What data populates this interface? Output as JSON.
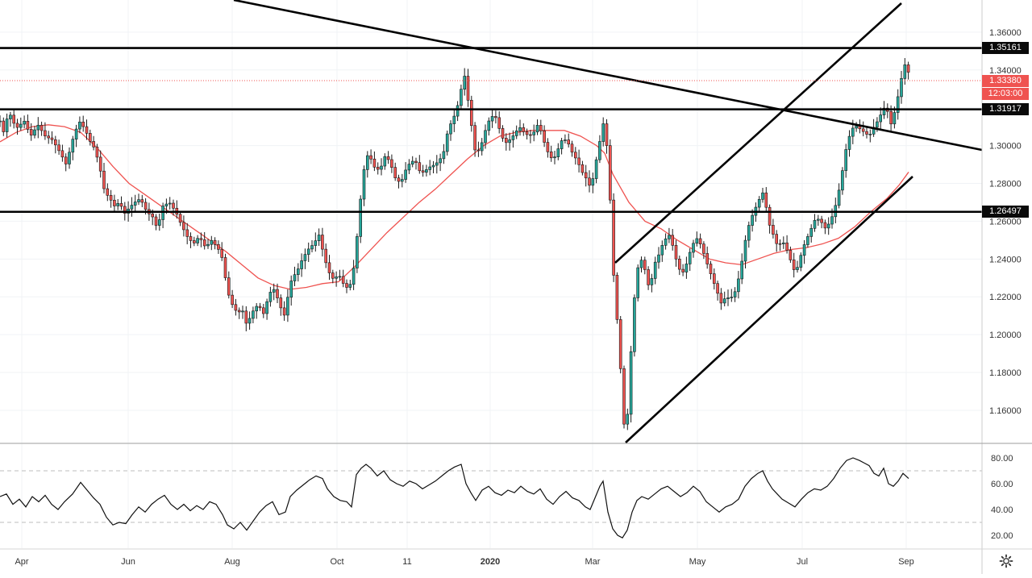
{
  "chart_data": {
    "type": "candlestick",
    "price_axis": {
      "ticks": [
        "1.36000",
        "1.34000",
        "1.32000",
        "1.30000",
        "1.28000",
        "1.26000",
        "1.24000",
        "1.22000",
        "1.20000",
        "1.18000",
        "1.16000"
      ],
      "range": [
        1.1425,
        1.377
      ]
    },
    "rsi_axis": {
      "ticks": [
        "80.00",
        "60.00",
        "40.00",
        "20.00"
      ],
      "range": [
        10,
        90
      ],
      "bands": [
        70,
        30
      ]
    },
    "time_axis": {
      "ticks": [
        "Apr",
        "Jun",
        "Aug",
        "Oct",
        "11",
        "2020",
        "Mar",
        "May",
        "Jul",
        "Sep"
      ]
    },
    "horizontal_levels": [
      "1.35161",
      "1.31917",
      "1.26497"
    ],
    "current_price": "1.33380",
    "countdown": "12:03:00",
    "moving_average_color": "#ef5350",
    "up_color": "#26a69a",
    "down_color": "#ef5350",
    "price_points": [
      [
        0,
        1.313
      ],
      [
        6,
        1.305
      ],
      [
        10,
        1.319
      ],
      [
        20,
        1.309
      ],
      [
        30,
        1.313
      ],
      [
        38,
        1.305
      ],
      [
        47,
        1.311
      ],
      [
        56,
        1.305
      ],
      [
        65,
        1.303
      ],
      [
        75,
        1.296
      ],
      [
        82,
        1.29
      ],
      [
        90,
        1.303
      ],
      [
        98,
        1.313
      ],
      [
        105,
        1.309
      ],
      [
        112,
        1.302
      ],
      [
        118,
        1.298
      ],
      [
        125,
        1.286
      ],
      [
        130,
        1.275
      ],
      [
        135,
        1.273
      ],
      [
        142,
        1.268
      ],
      [
        148,
        1.27
      ],
      [
        155,
        1.264
      ],
      [
        160,
        1.267
      ],
      [
        167,
        1.27
      ],
      [
        174,
        1.272
      ],
      [
        182,
        1.265
      ],
      [
        190,
        1.262
      ],
      [
        195,
        1.256
      ],
      [
        202,
        1.268
      ],
      [
        210,
        1.27
      ],
      [
        218,
        1.265
      ],
      [
        225,
        1.258
      ],
      [
        232,
        1.252
      ],
      [
        240,
        1.248
      ],
      [
        247,
        1.252
      ],
      [
        255,
        1.246
      ],
      [
        262,
        1.25
      ],
      [
        270,
        1.246
      ],
      [
        276,
        1.24
      ],
      [
        282,
        1.223
      ],
      [
        288,
        1.216
      ],
      [
        295,
        1.211
      ],
      [
        300,
        1.214
      ],
      [
        306,
        1.205
      ],
      [
        313,
        1.212
      ],
      [
        320,
        1.216
      ],
      [
        327,
        1.211
      ],
      [
        334,
        1.222
      ],
      [
        340,
        1.224
      ],
      [
        347,
        1.216
      ],
      [
        352,
        1.209
      ],
      [
        357,
        1.22
      ],
      [
        362,
        1.23
      ],
      [
        368,
        1.233
      ],
      [
        375,
        1.24
      ],
      [
        382,
        1.245
      ],
      [
        389,
        1.248
      ],
      [
        396,
        1.253
      ],
      [
        402,
        1.241
      ],
      [
        408,
        1.233
      ],
      [
        414,
        1.229
      ],
      [
        420,
        1.232
      ],
      [
        427,
        1.226
      ],
      [
        433,
        1.224
      ],
      [
        440,
        1.238
      ],
      [
        445,
        1.262
      ],
      [
        450,
        1.284
      ],
      [
        455,
        1.295
      ],
      [
        460,
        1.293
      ],
      [
        466,
        1.287
      ],
      [
        472,
        1.288
      ],
      [
        478,
        1.295
      ],
      [
        484,
        1.291
      ],
      [
        490,
        1.283
      ],
      [
        497,
        1.28
      ],
      [
        503,
        1.287
      ],
      [
        510,
        1.292
      ],
      [
        516,
        1.291
      ],
      [
        522,
        1.285
      ],
      [
        528,
        1.287
      ],
      [
        534,
        1.289
      ],
      [
        540,
        1.29
      ],
      [
        546,
        1.293
      ],
      [
        550,
        1.296
      ],
      [
        556,
        1.309
      ],
      [
        562,
        1.314
      ],
      [
        567,
        1.32
      ],
      [
        572,
        1.33
      ],
      [
        577,
        1.338
      ],
      [
        581,
        1.322
      ],
      [
        586,
        1.307
      ],
      [
        590,
        1.295
      ],
      [
        596,
        1.299
      ],
      [
        602,
        1.308
      ],
      [
        608,
        1.315
      ],
      [
        614,
        1.316
      ],
      [
        620,
        1.308
      ],
      [
        626,
        1.301
      ],
      [
        632,
        1.303
      ],
      [
        638,
        1.306
      ],
      [
        644,
        1.31
      ],
      [
        650,
        1.307
      ],
      [
        656,
        1.305
      ],
      [
        662,
        1.307
      ],
      [
        668,
        1.312
      ],
      [
        674,
        1.303
      ],
      [
        680,
        1.296
      ],
      [
        686,
        1.292
      ],
      [
        692,
        1.298
      ],
      [
        698,
        1.304
      ],
      [
        704,
        1.302
      ],
      [
        710,
        1.296
      ],
      [
        716,
        1.292
      ],
      [
        722,
        1.286
      ],
      [
        728,
        1.282
      ],
      [
        733,
        1.277
      ],
      [
        738,
        1.289
      ],
      [
        743,
        1.3
      ],
      [
        748,
        1.312
      ],
      [
        752,
        1.303
      ],
      [
        755,
        1.285
      ],
      [
        758,
        1.262
      ],
      [
        761,
        1.232
      ],
      [
        764,
        1.215
      ],
      [
        767,
        1.2
      ],
      [
        770,
        1.18
      ],
      [
        772,
        1.158
      ],
      [
        775,
        1.15
      ],
      [
        778,
        1.156
      ],
      [
        781,
        1.175
      ],
      [
        784,
        1.205
      ],
      [
        788,
        1.225
      ],
      [
        792,
        1.238
      ],
      [
        797,
        1.24
      ],
      [
        802,
        1.23
      ],
      [
        806,
        1.223
      ],
      [
        811,
        1.237
      ],
      [
        816,
        1.241
      ],
      [
        821,
        1.247
      ],
      [
        826,
        1.251
      ],
      [
        831,
        1.253
      ],
      [
        836,
        1.244
      ],
      [
        841,
        1.236
      ],
      [
        846,
        1.232
      ],
      [
        852,
        1.238
      ],
      [
        858,
        1.247
      ],
      [
        864,
        1.251
      ],
      [
        870,
        1.247
      ],
      [
        875,
        1.24
      ],
      [
        880,
        1.234
      ],
      [
        885,
        1.228
      ],
      [
        890,
        1.222
      ],
      [
        895,
        1.216
      ],
      [
        900,
        1.22
      ],
      [
        906,
        1.219
      ],
      [
        912,
        1.223
      ],
      [
        918,
        1.233
      ],
      [
        924,
        1.249
      ],
      [
        930,
        1.26
      ],
      [
        936,
        1.266
      ],
      [
        941,
        1.271
      ],
      [
        946,
        1.275
      ],
      [
        950,
        1.268
      ],
      [
        955,
        1.257
      ],
      [
        960,
        1.252
      ],
      [
        965,
        1.246
      ],
      [
        970,
        1.25
      ],
      [
        975,
        1.246
      ],
      [
        980,
        1.24
      ],
      [
        985,
        1.234
      ],
      [
        990,
        1.236
      ],
      [
        995,
        1.245
      ],
      [
        1000,
        1.25
      ],
      [
        1006,
        1.256
      ],
      [
        1012,
        1.262
      ],
      [
        1018,
        1.26
      ],
      [
        1024,
        1.256
      ],
      [
        1030,
        1.26
      ],
      [
        1035,
        1.266
      ],
      [
        1040,
        1.275
      ],
      [
        1045,
        1.287
      ],
      [
        1050,
        1.3
      ],
      [
        1055,
        1.307
      ],
      [
        1060,
        1.311
      ],
      [
        1066,
        1.309
      ],
      [
        1072,
        1.307
      ],
      [
        1078,
        1.305
      ],
      [
        1084,
        1.31
      ],
      [
        1090,
        1.314
      ],
      [
        1096,
        1.32
      ],
      [
        1101,
        1.318
      ],
      [
        1106,
        1.31
      ],
      [
        1111,
        1.321
      ],
      [
        1116,
        1.33
      ],
      [
        1120,
        1.341
      ],
      [
        1124,
        1.344
      ],
      [
        1127,
        1.338
      ]
    ],
    "ma_points": [
      [
        0,
        1.302
      ],
      [
        20,
        1.307
      ],
      [
        40,
        1.31
      ],
      [
        60,
        1.311
      ],
      [
        80,
        1.31
      ],
      [
        100,
        1.307
      ],
      [
        120,
        1.299
      ],
      [
        140,
        1.289
      ],
      [
        160,
        1.28
      ],
      [
        180,
        1.274
      ],
      [
        200,
        1.268
      ],
      [
        220,
        1.262
      ],
      [
        240,
        1.256
      ],
      [
        260,
        1.25
      ],
      [
        280,
        1.244
      ],
      [
        300,
        1.237
      ],
      [
        320,
        1.23
      ],
      [
        340,
        1.226
      ],
      [
        360,
        1.224
      ],
      [
        380,
        1.225
      ],
      [
        400,
        1.227
      ],
      [
        420,
        1.228
      ],
      [
        440,
        1.236
      ],
      [
        460,
        1.245
      ],
      [
        480,
        1.254
      ],
      [
        500,
        1.262
      ],
      [
        520,
        1.27
      ],
      [
        540,
        1.277
      ],
      [
        560,
        1.285
      ],
      [
        580,
        1.293
      ],
      [
        600,
        1.3
      ],
      [
        620,
        1.305
      ],
      [
        640,
        1.307
      ],
      [
        660,
        1.308
      ],
      [
        680,
        1.308
      ],
      [
        700,
        1.308
      ],
      [
        720,
        1.305
      ],
      [
        740,
        1.3
      ],
      [
        750,
        1.296
      ],
      [
        760,
        1.285
      ],
      [
        780,
        1.27
      ],
      [
        800,
        1.26
      ],
      [
        820,
        1.256
      ],
      [
        840,
        1.25
      ],
      [
        860,
        1.245
      ],
      [
        880,
        1.24
      ],
      [
        900,
        1.238
      ],
      [
        920,
        1.237
      ],
      [
        940,
        1.24
      ],
      [
        960,
        1.243
      ],
      [
        980,
        1.245
      ],
      [
        1000,
        1.246
      ],
      [
        1020,
        1.248
      ],
      [
        1040,
        1.251
      ],
      [
        1060,
        1.257
      ],
      [
        1080,
        1.265
      ],
      [
        1100,
        1.272
      ],
      [
        1115,
        1.279
      ],
      [
        1127,
        1.286
      ]
    ],
    "rsi_points": [
      [
        0,
        50
      ],
      [
        8,
        52
      ],
      [
        16,
        44
      ],
      [
        24,
        48
      ],
      [
        32,
        42
      ],
      [
        40,
        50
      ],
      [
        48,
        46
      ],
      [
        56,
        51
      ],
      [
        64,
        44
      ],
      [
        72,
        40
      ],
      [
        80,
        46
      ],
      [
        90,
        52
      ],
      [
        100,
        61
      ],
      [
        108,
        55
      ],
      [
        116,
        49
      ],
      [
        124,
        44
      ],
      [
        132,
        34
      ],
      [
        140,
        28
      ],
      [
        148,
        30
      ],
      [
        156,
        29
      ],
      [
        164,
        36
      ],
      [
        172,
        42
      ],
      [
        180,
        38
      ],
      [
        188,
        44
      ],
      [
        196,
        48
      ],
      [
        204,
        51
      ],
      [
        212,
        44
      ],
      [
        220,
        40
      ],
      [
        228,
        44
      ],
      [
        236,
        39
      ],
      [
        244,
        43
      ],
      [
        252,
        40
      ],
      [
        260,
        46
      ],
      [
        268,
        44
      ],
      [
        276,
        36
      ],
      [
        282,
        28
      ],
      [
        290,
        25
      ],
      [
        298,
        30
      ],
      [
        306,
        24
      ],
      [
        314,
        31
      ],
      [
        322,
        38
      ],
      [
        330,
        43
      ],
      [
        338,
        46
      ],
      [
        346,
        36
      ],
      [
        354,
        38
      ],
      [
        360,
        50
      ],
      [
        368,
        55
      ],
      [
        376,
        59
      ],
      [
        384,
        63
      ],
      [
        392,
        66
      ],
      [
        400,
        64
      ],
      [
        406,
        56
      ],
      [
        414,
        50
      ],
      [
        422,
        47
      ],
      [
        430,
        46
      ],
      [
        436,
        42
      ],
      [
        442,
        67
      ],
      [
        448,
        72
      ],
      [
        454,
        75
      ],
      [
        460,
        72
      ],
      [
        468,
        66
      ],
      [
        476,
        70
      ],
      [
        484,
        63
      ],
      [
        492,
        60
      ],
      [
        500,
        58
      ],
      [
        508,
        62
      ],
      [
        516,
        60
      ],
      [
        524,
        56
      ],
      [
        532,
        59
      ],
      [
        540,
        62
      ],
      [
        548,
        66
      ],
      [
        556,
        70
      ],
      [
        564,
        73
      ],
      [
        572,
        75
      ],
      [
        578,
        60
      ],
      [
        584,
        53
      ],
      [
        590,
        47
      ],
      [
        598,
        55
      ],
      [
        606,
        58
      ],
      [
        614,
        53
      ],
      [
        622,
        51
      ],
      [
        630,
        55
      ],
      [
        638,
        53
      ],
      [
        646,
        58
      ],
      [
        654,
        54
      ],
      [
        662,
        52
      ],
      [
        670,
        56
      ],
      [
        678,
        48
      ],
      [
        686,
        44
      ],
      [
        694,
        50
      ],
      [
        702,
        54
      ],
      [
        710,
        49
      ],
      [
        718,
        47
      ],
      [
        726,
        42
      ],
      [
        732,
        40
      ],
      [
        738,
        49
      ],
      [
        744,
        58
      ],
      [
        748,
        62
      ],
      [
        754,
        38
      ],
      [
        760,
        25
      ],
      [
        766,
        20
      ],
      [
        772,
        18
      ],
      [
        778,
        24
      ],
      [
        784,
        38
      ],
      [
        790,
        47
      ],
      [
        796,
        50
      ],
      [
        804,
        48
      ],
      [
        812,
        52
      ],
      [
        820,
        56
      ],
      [
        828,
        58
      ],
      [
        836,
        54
      ],
      [
        844,
        50
      ],
      [
        852,
        53
      ],
      [
        860,
        58
      ],
      [
        868,
        54
      ],
      [
        876,
        46
      ],
      [
        884,
        42
      ],
      [
        892,
        38
      ],
      [
        900,
        42
      ],
      [
        908,
        44
      ],
      [
        916,
        48
      ],
      [
        924,
        58
      ],
      [
        932,
        64
      ],
      [
        940,
        68
      ],
      [
        946,
        70
      ],
      [
        952,
        62
      ],
      [
        958,
        56
      ],
      [
        964,
        52
      ],
      [
        970,
        48
      ],
      [
        978,
        45
      ],
      [
        986,
        42
      ],
      [
        994,
        48
      ],
      [
        1002,
        53
      ],
      [
        1010,
        56
      ],
      [
        1018,
        55
      ],
      [
        1026,
        58
      ],
      [
        1034,
        64
      ],
      [
        1042,
        72
      ],
      [
        1050,
        78
      ],
      [
        1058,
        80
      ],
      [
        1066,
        78
      ],
      [
        1072,
        76
      ],
      [
        1078,
        74
      ],
      [
        1084,
        68
      ],
      [
        1090,
        66
      ],
      [
        1096,
        72
      ],
      [
        1102,
        60
      ],
      [
        1108,
        58
      ],
      [
        1114,
        62
      ],
      [
        1120,
        68
      ],
      [
        1127,
        64
      ]
    ]
  },
  "icons": {
    "settings": "gear-icon"
  }
}
